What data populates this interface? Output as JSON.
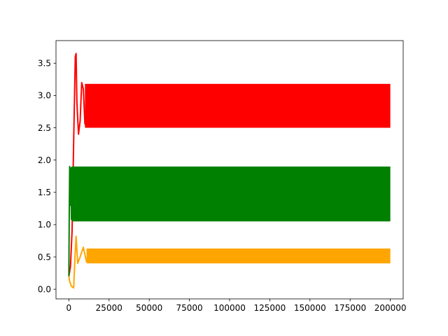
{
  "chart_data": {
    "type": "line",
    "title": "",
    "xlabel": "",
    "ylabel": "",
    "xlim": [
      -8000,
      208000
    ],
    "ylim": [
      -0.15,
      3.85
    ],
    "x_ticks": [
      0,
      25000,
      50000,
      75000,
      100000,
      125000,
      150000,
      175000,
      200000
    ],
    "x_tick_labels": [
      "0",
      "25000",
      "50000",
      "75000",
      "100000",
      "125000",
      "150000",
      "175000",
      "200000"
    ],
    "y_ticks": [
      0.0,
      0.5,
      1.0,
      1.5,
      2.0,
      2.5,
      3.0,
      3.5
    ],
    "y_tick_labels": [
      "0.0",
      "0.5",
      "1.0",
      "1.5",
      "2.0",
      "2.5",
      "3.0",
      "3.5"
    ],
    "grid": false,
    "legend": "none",
    "series": [
      {
        "color": "#ff0000",
        "transient": [
          [
            0,
            0.2
          ],
          [
            1000,
            0.35
          ],
          [
            2000,
            0.9
          ],
          [
            3000,
            2.3
          ],
          [
            4000,
            3.6
          ],
          [
            4500,
            3.65
          ],
          [
            5000,
            2.9
          ],
          [
            6000,
            2.4
          ],
          [
            7000,
            2.6
          ],
          [
            8000,
            3.2
          ],
          [
            9000,
            3.1
          ],
          [
            10000,
            2.55
          ]
        ],
        "band": {
          "x_start": 10000,
          "x_end": 200000,
          "min": 2.5,
          "max": 3.18
        }
      },
      {
        "color": "#008000",
        "transient": [
          [
            0,
            0.2
          ],
          [
            200,
            1.0
          ],
          [
            500,
            1.9
          ],
          [
            800,
            1.3
          ],
          [
            1200,
            1.88
          ],
          [
            1600,
            1.08
          ],
          [
            2000,
            1.9
          ]
        ],
        "band": {
          "x_start": 2000,
          "x_end": 200000,
          "min": 1.05,
          "max": 1.9
        }
      },
      {
        "color": "#ffa500",
        "transient": [
          [
            0,
            0.2
          ],
          [
            500,
            0.12
          ],
          [
            1500,
            0.05
          ],
          [
            3000,
            0.02
          ],
          [
            3800,
            0.5
          ],
          [
            4500,
            0.82
          ],
          [
            5500,
            0.4
          ],
          [
            7000,
            0.5
          ],
          [
            9000,
            0.65
          ],
          [
            11000,
            0.42
          ]
        ],
        "band": {
          "x_start": 11000,
          "x_end": 200000,
          "min": 0.4,
          "max": 0.63
        }
      }
    ]
  }
}
